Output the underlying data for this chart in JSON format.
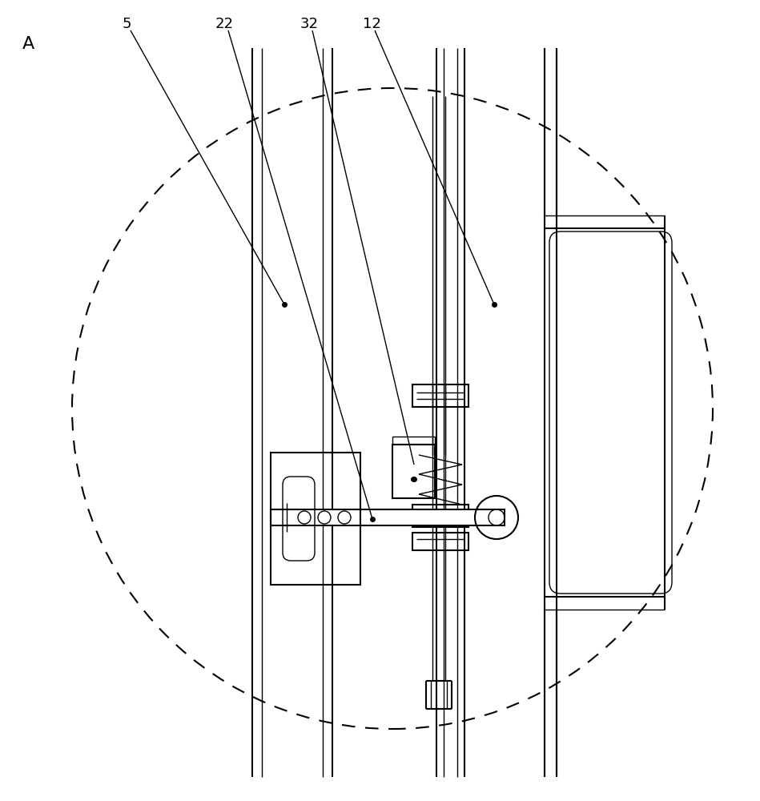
{
  "fig_width": 9.49,
  "fig_height": 10.0,
  "dpi": 100,
  "bg_color": "#ffffff",
  "lc": "#000000"
}
